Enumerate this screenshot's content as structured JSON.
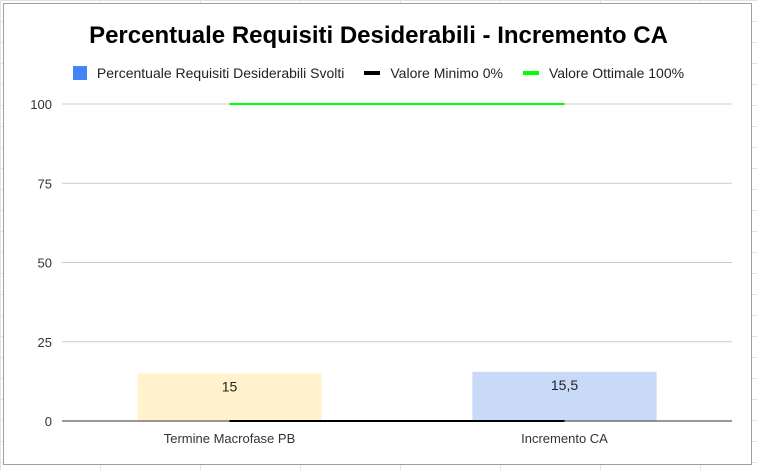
{
  "chart_data": {
    "type": "bar",
    "title": "Percentuale Requisiti Desiderabili - Incremento CA",
    "categories": [
      "Termine Macrofase PB",
      "Incremento CA"
    ],
    "series": [
      {
        "name": "Percentuale Requisiti Desiderabili Svolti",
        "type": "bar",
        "values": [
          15,
          15.5
        ],
        "labels": [
          "15",
          "15,5"
        ],
        "color": "#4285f4",
        "point_colors": [
          "#fff2cc",
          "#c9daf8"
        ]
      },
      {
        "name": "Valore Minimo 0%",
        "type": "line",
        "values": [
          0,
          0
        ],
        "color": "#000000"
      },
      {
        "name": "Valore Ottimale 100%",
        "type": "line",
        "values": [
          100,
          100
        ],
        "color": "#00ff00"
      }
    ],
    "ylim": [
      0,
      100
    ],
    "yticks": [
      0,
      25,
      50,
      75,
      100
    ],
    "xlabel": "",
    "ylabel": "",
    "grid": true,
    "legend_position": "top"
  }
}
